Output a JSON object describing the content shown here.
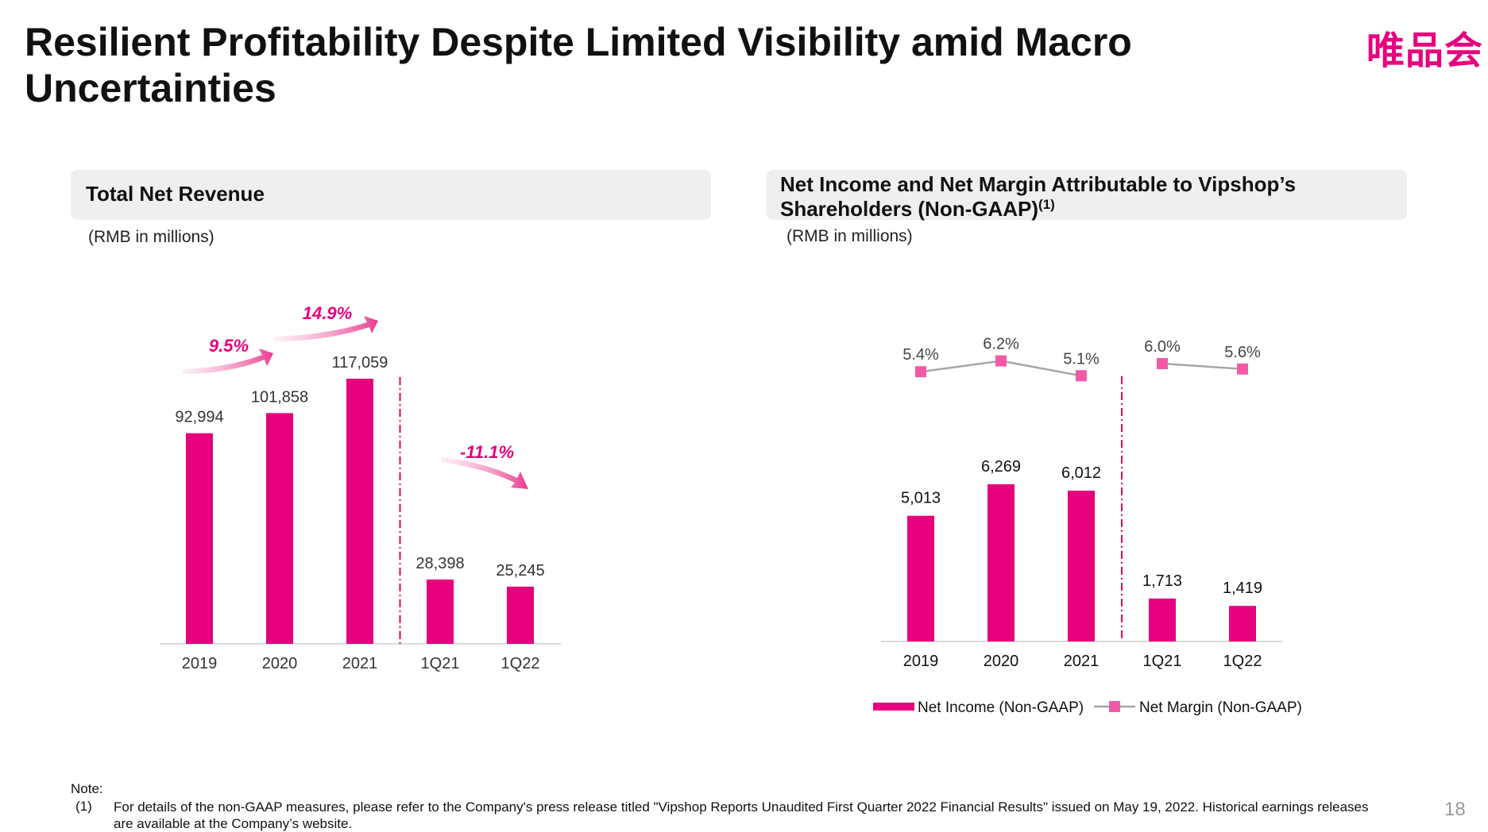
{
  "slide": {
    "title": "Resilient Profitability Despite Limited Visibility amid Macro Uncertainties",
    "logo_text": "唯品会",
    "page_number": "18"
  },
  "colors": {
    "accent": "#e6007e",
    "margin_marker": "#f25aa8",
    "margin_line": "#a6a6a6"
  },
  "revenue_panel": {
    "title": "Total Net Revenue",
    "units": "(RMB in millions)"
  },
  "net_income_panel": {
    "title": "Net Income and Net Margin Attributable to Vipshop’s Shareholders (Non-GAAP)",
    "title_sup": "(1)",
    "units": "(RMB in millions)"
  },
  "chart_data": [
    {
      "type": "bar",
      "title": "Total Net Revenue",
      "categories": [
        "2019",
        "2020",
        "2021",
        "1Q21",
        "1Q22"
      ],
      "values": [
        92994,
        101858,
        117059,
        28398,
        25245
      ],
      "value_labels": [
        "92,994",
        "101,858",
        "117,059",
        "28,398",
        "25,245"
      ],
      "ylim": [
        0,
        117059
      ],
      "grid": false,
      "divider_after_category": "2021",
      "annotations": [
        {
          "text": "9.5%",
          "from": "2019",
          "to": "2020",
          "direction": "up"
        },
        {
          "text": "14.9%",
          "from": "2020",
          "to": "2021",
          "direction": "up"
        },
        {
          "text": "-11.1%",
          "from": "1Q21",
          "to": "1Q22",
          "direction": "down"
        }
      ]
    },
    {
      "type": "bar",
      "title": "Net Income and Net Margin Attributable to Vipshop’s Shareholders (Non-GAAP)",
      "categories": [
        "2019",
        "2020",
        "2021",
        "1Q21",
        "1Q22"
      ],
      "ylim": [
        0,
        6269
      ],
      "grid": false,
      "legend_position": "bottom",
      "divider_after_category": "2021",
      "series": [
        {
          "name": "Net Income (Non-GAAP)",
          "type": "bar",
          "values": [
            5013,
            6269,
            6012,
            1713,
            1419
          ],
          "value_labels": [
            "5,013",
            "6,269",
            "6,012",
            "1,713",
            "1,419"
          ]
        },
        {
          "name": "Net Margin (Non-GAAP)",
          "type": "line",
          "values": [
            5.4,
            6.2,
            5.1,
            6.0,
            5.6
          ],
          "value_labels": [
            "5.4%",
            "6.2%",
            "5.1%",
            "6.0%",
            "5.6%"
          ],
          "connected_segments": [
            [
              0,
              1,
              2
            ],
            [
              3,
              4
            ]
          ]
        }
      ]
    }
  ],
  "footnote": {
    "label": "Note:",
    "index": "(1)",
    "text": "For details of the non-GAAP measures, please refer to the Company's press release titled \"Vipshop Reports Unaudited First Quarter 2022 Financial Results\" issued on May 19, 2022. Historical earnings releases are available at the Company’s website."
  }
}
